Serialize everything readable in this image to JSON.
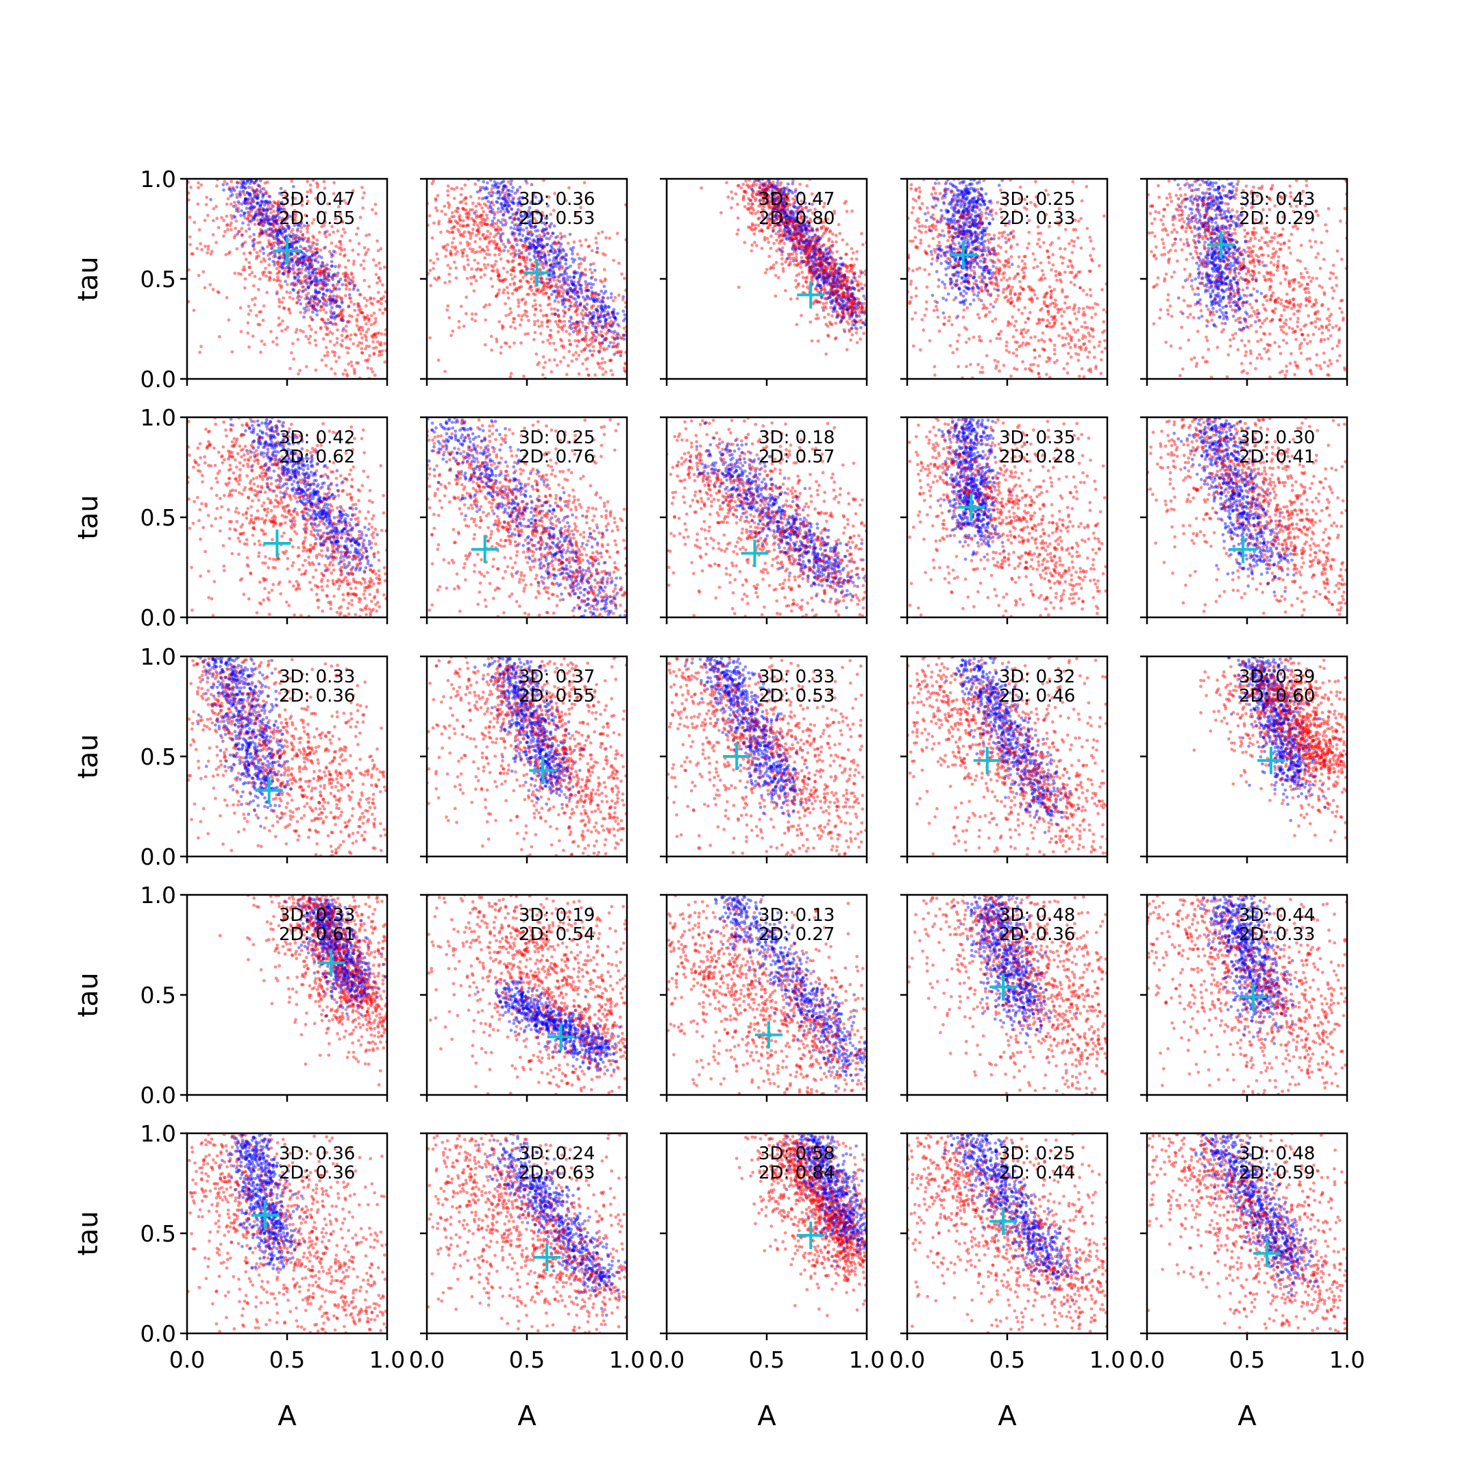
{
  "chart_data": {
    "type": "scatter",
    "layout": {
      "rows": 5,
      "cols": 5
    },
    "xlabel": "A",
    "ylabel": "tau",
    "xlim": [
      0,
      1
    ],
    "ylim": [
      0,
      1
    ],
    "xticks": [
      "0.0",
      "0.5",
      "1.0"
    ],
    "yticks": [
      "0.0",
      "0.5",
      "1.0"
    ],
    "grid": false,
    "colors": {
      "sample_3d": "#0000ff",
      "sample_2d": "#ff0000",
      "truth_marker": "#17becf"
    },
    "panels": [
      {
        "label_3d": "3D: 0.47",
        "label_2d": "2D: 0.55",
        "truth": [
          0.5,
          0.64
        ],
        "blue": {
          "a0": 0.25,
          "t0": 1.0,
          "a1": 0.75,
          "t1": 0.35,
          "spread": 0.06
        },
        "red": {
          "a0": 0.22,
          "t0": 1.0,
          "a1": 0.95,
          "t1": 0.15,
          "spread": 0.25
        }
      },
      {
        "label_3d": "3D: 0.36",
        "label_2d": "2D: 0.53",
        "truth": [
          0.55,
          0.53
        ],
        "blue": {
          "a0": 0.3,
          "t0": 1.0,
          "a1": 0.95,
          "t1": 0.2,
          "spread": 0.06
        },
        "red": {
          "a0": 0.1,
          "t0": 0.9,
          "a1": 0.95,
          "t1": 0.1,
          "spread": 0.2
        }
      },
      {
        "label_3d": "3D: 0.47",
        "label_2d": "2D: 0.80",
        "truth": [
          0.72,
          0.42
        ],
        "blue": {
          "a0": 0.5,
          "t0": 1.0,
          "a1": 0.95,
          "t1": 0.3,
          "spread": 0.05
        },
        "red": {
          "a0": 0.45,
          "t0": 1.0,
          "a1": 0.98,
          "t1": 0.3,
          "spread": 0.1
        }
      },
      {
        "label_3d": "3D: 0.25",
        "label_2d": "2D: 0.33",
        "truth": [
          0.28,
          0.62
        ],
        "blue": {
          "a0": 0.28,
          "t0": 1.0,
          "a1": 0.3,
          "t1": 0.45,
          "spread": 0.07
        },
        "red": {
          "a0": 0.05,
          "t0": 0.9,
          "a1": 0.95,
          "t1": 0.1,
          "spread": 0.3
        }
      },
      {
        "label_3d": "3D: 0.43",
        "label_2d": "2D: 0.29",
        "truth": [
          0.37,
          0.67
        ],
        "blue": {
          "a0": 0.3,
          "t0": 1.0,
          "a1": 0.4,
          "t1": 0.35,
          "spread": 0.07
        },
        "red": {
          "a0": 0.1,
          "t0": 0.9,
          "a1": 0.9,
          "t1": 0.2,
          "spread": 0.3
        }
      },
      {
        "label_3d": "3D: 0.42",
        "label_2d": "2D: 0.62",
        "truth": [
          0.45,
          0.37
        ],
        "blue": {
          "a0": 0.35,
          "t0": 1.0,
          "a1": 0.85,
          "t1": 0.3,
          "spread": 0.06
        },
        "red": {
          "a0": 0.15,
          "t0": 0.9,
          "a1": 0.95,
          "t1": 0.1,
          "spread": 0.25
        }
      },
      {
        "label_3d": "3D: 0.25",
        "label_2d": "2D: 0.76",
        "truth": [
          0.29,
          0.34
        ],
        "blue": {
          "a0": 0.08,
          "t0": 1.0,
          "a1": 0.9,
          "t1": 0.05,
          "spread": 0.08
        },
        "red": {
          "a0": 0.1,
          "t0": 0.8,
          "a1": 0.95,
          "t1": 0.1,
          "spread": 0.25
        }
      },
      {
        "label_3d": "3D: 0.18",
        "label_2d": "2D: 0.57",
        "truth": [
          0.44,
          0.32
        ],
        "blue": {
          "a0": 0.25,
          "t0": 0.8,
          "a1": 0.9,
          "t1": 0.15,
          "spread": 0.06
        },
        "red": {
          "a0": 0.1,
          "t0": 0.8,
          "a1": 0.95,
          "t1": 0.1,
          "spread": 0.25
        }
      },
      {
        "label_3d": "3D: 0.35",
        "label_2d": "2D: 0.28",
        "truth": [
          0.32,
          0.55
        ],
        "blue": {
          "a0": 0.3,
          "t0": 1.0,
          "a1": 0.35,
          "t1": 0.4,
          "spread": 0.06
        },
        "red": {
          "a0": 0.1,
          "t0": 0.9,
          "a1": 0.9,
          "t1": 0.1,
          "spread": 0.28
        }
      },
      {
        "label_3d": "3D: 0.30",
        "label_2d": "2D: 0.41",
        "truth": [
          0.48,
          0.34
        ],
        "blue": {
          "a0": 0.3,
          "t0": 1.0,
          "a1": 0.6,
          "t1": 0.25,
          "spread": 0.07
        },
        "red": {
          "a0": 0.2,
          "t0": 1.0,
          "a1": 0.95,
          "t1": 0.2,
          "spread": 0.25
        }
      },
      {
        "label_3d": "3D: 0.33",
        "label_2d": "2D: 0.36",
        "truth": [
          0.41,
          0.33
        ],
        "blue": {
          "a0": 0.2,
          "t0": 1.0,
          "a1": 0.4,
          "t1": 0.3,
          "spread": 0.07
        },
        "red": {
          "a0": 0.1,
          "t0": 0.9,
          "a1": 0.9,
          "t1": 0.1,
          "spread": 0.28
        }
      },
      {
        "label_3d": "3D: 0.37",
        "label_2d": "2D: 0.55",
        "truth": [
          0.58,
          0.43
        ],
        "blue": {
          "a0": 0.4,
          "t0": 1.0,
          "a1": 0.65,
          "t1": 0.35,
          "spread": 0.06
        },
        "red": {
          "a0": 0.3,
          "t0": 0.95,
          "a1": 0.9,
          "t1": 0.2,
          "spread": 0.25
        }
      },
      {
        "label_3d": "3D: 0.33",
        "label_2d": "2D: 0.53",
        "truth": [
          0.35,
          0.5
        ],
        "blue": {
          "a0": 0.25,
          "t0": 1.0,
          "a1": 0.6,
          "t1": 0.3,
          "spread": 0.06
        },
        "red": {
          "a0": 0.1,
          "t0": 0.9,
          "a1": 0.95,
          "t1": 0.15,
          "spread": 0.28
        }
      },
      {
        "label_3d": "3D: 0.32",
        "label_2d": "2D: 0.46",
        "truth": [
          0.4,
          0.48
        ],
        "blue": {
          "a0": 0.3,
          "t0": 1.0,
          "a1": 0.7,
          "t1": 0.25,
          "spread": 0.06
        },
        "red": {
          "a0": 0.1,
          "t0": 0.9,
          "a1": 0.9,
          "t1": 0.15,
          "spread": 0.25
        }
      },
      {
        "label_3d": "3D: 0.39",
        "label_2d": "2D: 0.60",
        "truth": [
          0.62,
          0.48
        ],
        "blue": {
          "a0": 0.55,
          "t0": 1.0,
          "a1": 0.75,
          "t1": 0.35,
          "spread": 0.06
        },
        "red": {
          "a0": 0.55,
          "t0": 0.9,
          "a1": 0.95,
          "t1": 0.4,
          "spread": 0.15
        }
      },
      {
        "label_3d": "3D: 0.33",
        "label_2d": "2D: 0.61",
        "truth": [
          0.72,
          0.66
        ],
        "blue": {
          "a0": 0.65,
          "t0": 0.95,
          "a1": 0.85,
          "t1": 0.5,
          "spread": 0.06
        },
        "red": {
          "a0": 0.6,
          "t0": 1.0,
          "a1": 0.95,
          "t1": 0.35,
          "spread": 0.15
        }
      },
      {
        "label_3d": "3D: 0.19",
        "label_2d": "2D: 0.54",
        "truth": [
          0.67,
          0.29
        ],
        "blue": {
          "a0": 0.4,
          "t0": 0.5,
          "a1": 0.9,
          "t1": 0.2,
          "spread": 0.05
        },
        "red": {
          "a0": 0.3,
          "t0": 0.9,
          "a1": 0.95,
          "t1": 0.2,
          "spread": 0.25
        }
      },
      {
        "label_3d": "3D: 0.13",
        "label_2d": "2D: 0.27",
        "truth": [
          0.51,
          0.3
        ],
        "blue": {
          "a0": 0.3,
          "t0": 1.0,
          "a1": 0.95,
          "t1": 0.15,
          "spread": 0.06
        },
        "red": {
          "a0": 0.05,
          "t0": 0.8,
          "a1": 0.95,
          "t1": 0.1,
          "spread": 0.25
        }
      },
      {
        "label_3d": "3D: 0.48",
        "label_2d": "2D: 0.36",
        "truth": [
          0.48,
          0.54
        ],
        "blue": {
          "a0": 0.4,
          "t0": 1.0,
          "a1": 0.6,
          "t1": 0.4,
          "spread": 0.07
        },
        "red": {
          "a0": 0.3,
          "t0": 1.0,
          "a1": 0.95,
          "t1": 0.2,
          "spread": 0.25
        }
      },
      {
        "label_3d": "3D: 0.44",
        "label_2d": "2D: 0.33",
        "truth": [
          0.53,
          0.49
        ],
        "blue": {
          "a0": 0.4,
          "t0": 1.0,
          "a1": 0.6,
          "t1": 0.4,
          "spread": 0.07
        },
        "red": {
          "a0": 0.1,
          "t0": 1.0,
          "a1": 0.95,
          "t1": 0.2,
          "spread": 0.28
        }
      },
      {
        "label_3d": "3D: 0.36",
        "label_2d": "2D: 0.36",
        "truth": [
          0.39,
          0.59
        ],
        "blue": {
          "a0": 0.3,
          "t0": 1.0,
          "a1": 0.45,
          "t1": 0.4,
          "spread": 0.06
        },
        "red": {
          "a0": 0.1,
          "t0": 0.9,
          "a1": 0.9,
          "t1": 0.1,
          "spread": 0.28
        }
      },
      {
        "label_3d": "3D: 0.24",
        "label_2d": "2D: 0.63",
        "truth": [
          0.6,
          0.38
        ],
        "blue": {
          "a0": 0.4,
          "t0": 0.9,
          "a1": 0.9,
          "t1": 0.25,
          "spread": 0.06
        },
        "red": {
          "a0": 0.1,
          "t0": 0.9,
          "a1": 0.95,
          "t1": 0.15,
          "spread": 0.25
        }
      },
      {
        "label_3d": "3D: 0.58",
        "label_2d": "2D: 0.84",
        "truth": [
          0.72,
          0.49
        ],
        "blue": {
          "a0": 0.7,
          "t0": 1.0,
          "a1": 0.95,
          "t1": 0.45,
          "spread": 0.06
        },
        "red": {
          "a0": 0.6,
          "t0": 0.95,
          "a1": 0.95,
          "t1": 0.35,
          "spread": 0.12
        }
      },
      {
        "label_3d": "3D: 0.25",
        "label_2d": "2D: 0.44",
        "truth": [
          0.48,
          0.56
        ],
        "blue": {
          "a0": 0.3,
          "t0": 1.0,
          "a1": 0.75,
          "t1": 0.3,
          "spread": 0.06
        },
        "red": {
          "a0": 0.1,
          "t0": 0.9,
          "a1": 0.95,
          "t1": 0.15,
          "spread": 0.25
        }
      },
      {
        "label_3d": "3D: 0.48",
        "label_2d": "2D: 0.59",
        "truth": [
          0.6,
          0.4
        ],
        "blue": {
          "a0": 0.35,
          "t0": 1.0,
          "a1": 0.75,
          "t1": 0.3,
          "spread": 0.06
        },
        "red": {
          "a0": 0.2,
          "t0": 1.0,
          "a1": 0.95,
          "t1": 0.1,
          "spread": 0.25
        }
      }
    ]
  }
}
